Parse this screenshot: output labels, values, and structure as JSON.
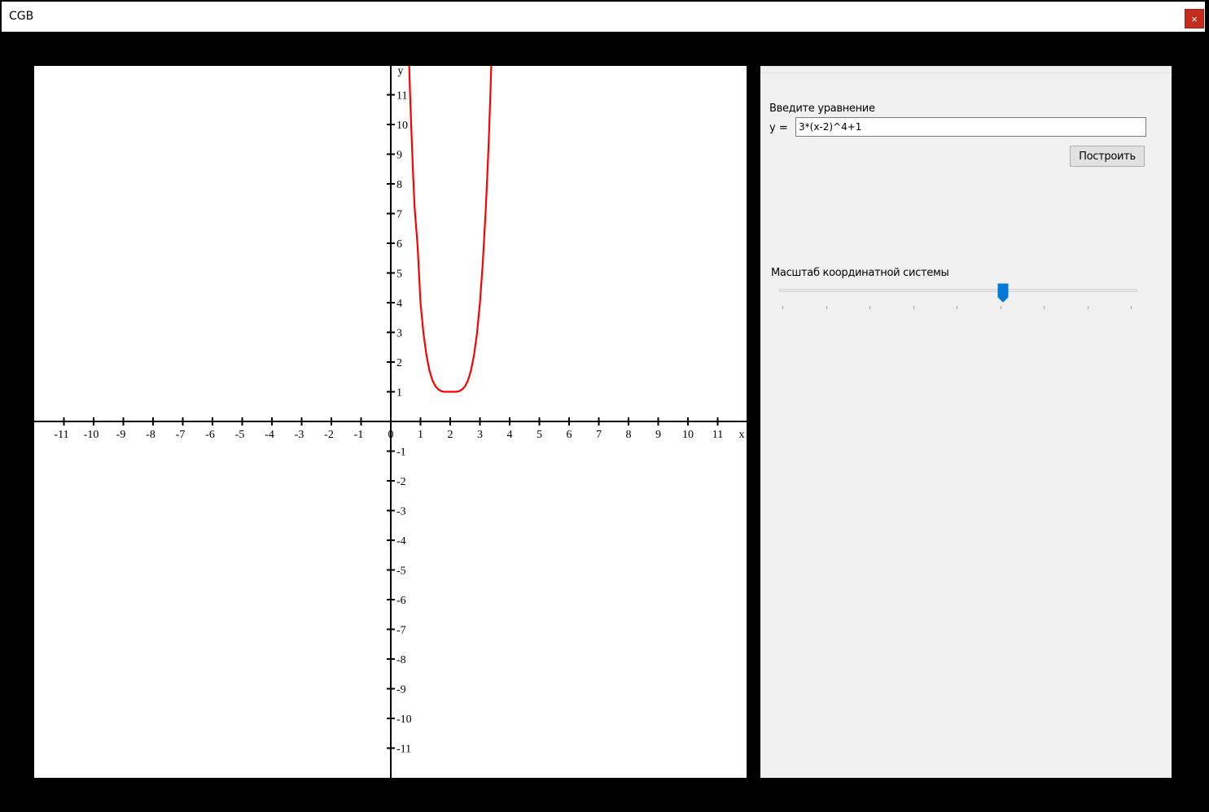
{
  "window": {
    "title": "CGB",
    "close_icon": "close-icon",
    "close_glyph": "×",
    "close_color": "#c42b1c"
  },
  "chart_data": {
    "type": "line",
    "xlabel": "x",
    "ylabel": "y",
    "xlim": [
      -12,
      12
    ],
    "ylim": [
      -12,
      12
    ],
    "x_ticks": [
      -11,
      -10,
      -9,
      -8,
      -7,
      -6,
      -5,
      -4,
      -3,
      -2,
      -1,
      0,
      1,
      2,
      3,
      4,
      5,
      6,
      7,
      8,
      9,
      10,
      11
    ],
    "y_ticks": [
      11,
      10,
      9,
      8,
      7,
      6,
      5,
      4,
      3,
      2,
      1,
      -1,
      -2,
      -3,
      -4,
      -5,
      -6,
      -7,
      -8,
      -9,
      -10,
      -11
    ],
    "series": [
      {
        "color": "#ff0000",
        "x": [
          0.58,
          0.65,
          0.7,
          0.75,
          0.8,
          0.9,
          1.0,
          1.1,
          1.2,
          1.3,
          1.4,
          1.5,
          1.6,
          1.7,
          1.8,
          1.9,
          2.0,
          2.1,
          2.2,
          2.3,
          2.4,
          2.5,
          2.6,
          2.7,
          2.8,
          2.9,
          3.0,
          3.1,
          3.2,
          3.25,
          3.3,
          3.35,
          3.42
        ],
        "y": [
          13.2,
          11.0,
          9.57,
          8.32,
          7.22,
          5.92,
          4.0,
          2.97,
          2.23,
          1.72,
          1.39,
          1.19,
          1.08,
          1.02,
          1.0,
          1.0,
          1.0,
          1.0,
          1.0,
          1.02,
          1.08,
          1.19,
          1.39,
          1.72,
          2.23,
          2.97,
          4.0,
          5.39,
          7.22,
          8.32,
          9.57,
          11.0,
          13.2
        ]
      }
    ],
    "grid": false,
    "axis_color": "#000000"
  },
  "panel": {
    "equation_label": "Введите уравнение",
    "y_prefix": "y =",
    "equation_value": "3*(x-2)^4+1",
    "build_button": "Построить",
    "scale_label": "Масштаб координатной системы",
    "slider": {
      "min": 0,
      "max": 8,
      "value": 5,
      "tick_count": 9,
      "thumb_color": "#0078d7"
    }
  }
}
